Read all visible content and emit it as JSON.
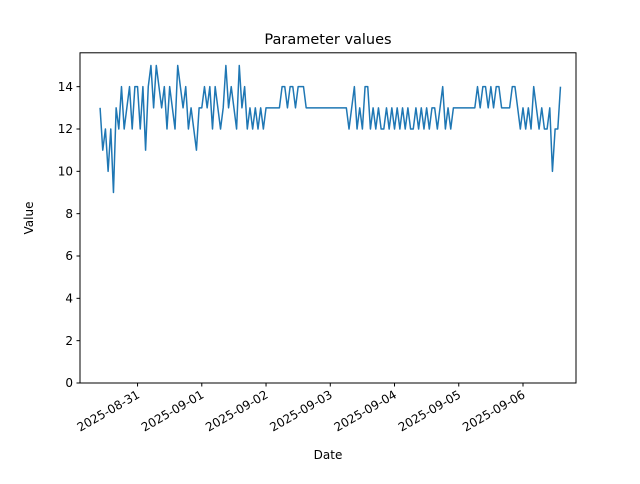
{
  "window": {
    "background": "#ffffff"
  },
  "chart_data": {
    "type": "line",
    "title": "Parameter values",
    "xlabel": "Date",
    "ylabel": "Value",
    "series_color": "#1f77b4",
    "grid": false,
    "legend": null,
    "x_sampling": "hourly",
    "x_start": "2025-08-30 10:00",
    "ylim": [
      0,
      15.6
    ],
    "yticks": [
      0,
      2,
      4,
      6,
      8,
      10,
      12,
      14
    ],
    "xlim_hours": [
      -7.5,
      177.8
    ],
    "xticks": [
      {
        "hour": 14,
        "label": "2025-08-31"
      },
      {
        "hour": 38,
        "label": "2025-09-01"
      },
      {
        "hour": 62,
        "label": "2025-09-02"
      },
      {
        "hour": 86,
        "label": "2025-09-03"
      },
      {
        "hour": 110,
        "label": "2025-09-04"
      },
      {
        "hour": 134,
        "label": "2025-09-05"
      },
      {
        "hour": 158,
        "label": "2025-09-06"
      }
    ],
    "values": [
      13,
      11,
      12,
      10,
      12,
      9,
      13,
      12,
      14,
      12,
      13,
      14,
      12,
      14,
      14,
      12,
      14,
      11,
      14,
      15,
      13,
      15,
      14,
      13,
      14,
      12,
      14,
      13,
      12,
      15,
      14,
      13,
      14,
      12,
      13,
      12,
      11,
      13,
      13,
      14,
      13,
      14,
      12,
      14,
      13,
      12,
      13,
      15,
      13,
      14,
      13,
      12,
      15,
      13,
      14,
      12,
      13,
      12,
      13,
      12,
      13,
      12,
      13,
      13,
      13,
      13,
      13,
      13,
      14,
      14,
      13,
      14,
      14,
      13,
      14,
      14,
      14,
      13,
      13,
      13,
      13,
      13,
      13,
      13,
      13,
      13,
      13,
      13,
      13,
      13,
      13,
      13,
      13,
      12,
      13,
      14,
      12,
      13,
      12,
      14,
      14,
      12,
      13,
      12,
      13,
      12,
      12,
      13,
      12,
      13,
      12,
      13,
      12,
      13,
      12,
      13,
      12,
      12,
      13,
      12,
      13,
      12,
      13,
      12,
      13,
      13,
      12,
      13,
      14,
      12,
      13,
      12,
      13,
      13,
      13,
      13,
      13,
      13,
      13,
      13,
      13,
      14,
      13,
      14,
      14,
      13,
      14,
      13,
      14,
      14,
      13,
      13,
      13,
      13,
      14,
      14,
      13,
      12,
      13,
      12,
      13,
      12,
      14,
      13,
      12,
      13,
      12,
      12,
      13,
      10,
      12,
      12,
      14
    ]
  }
}
